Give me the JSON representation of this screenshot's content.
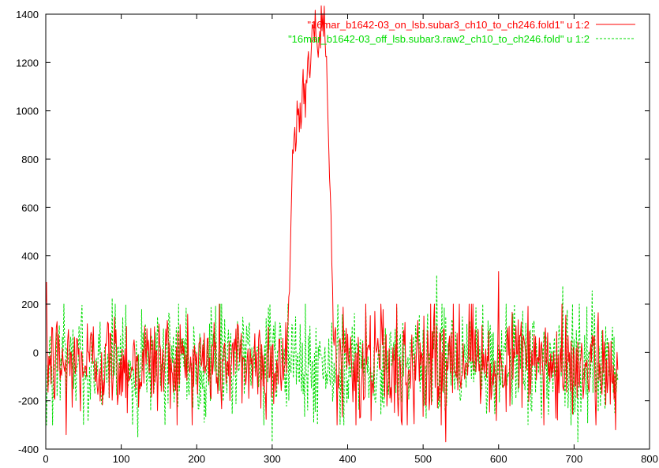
{
  "chart_data": {
    "type": "line",
    "xlim": [
      0,
      800
    ],
    "ylim": [
      -400,
      1400
    ],
    "x_ticks": [
      "0",
      "100",
      "200",
      "300",
      "400",
      "500",
      "600",
      "700",
      "800"
    ],
    "y_ticks": [
      "-400",
      "-200",
      "0",
      "200",
      "400",
      "600",
      "800",
      "1000",
      "1200",
      "1400"
    ],
    "grid": false,
    "legend_position": "top-right",
    "series": [
      {
        "name": "\"16mar_b1642-03_on_lsb.subar3_ch10_to_ch246.fold1\" u 1:2",
        "color": "#ff0000",
        "line_style": "solid",
        "x_range": [
          0,
          758
        ],
        "noise_sigma": 110,
        "spikes": [
          {
            "x": 1,
            "y": 290
          },
          {
            "x": 27,
            "y": -340
          },
          {
            "x": 530,
            "y": -370
          },
          {
            "x": 600,
            "y": 335
          },
          {
            "x": 755,
            "y": -320
          }
        ],
        "peak": {
          "points": [
            [
              318,
              20
            ],
            [
              323,
              350
            ],
            [
              326,
              650
            ],
            [
              330,
              900
            ],
            [
              336,
              1000
            ],
            [
              342,
              1050
            ],
            [
              348,
              1200
            ],
            [
              355,
              1330
            ],
            [
              360,
              1260
            ],
            [
              368,
              1380
            ],
            [
              372,
              1100
            ],
            [
              378,
              500
            ],
            [
              382,
              50
            ]
          ]
        }
      },
      {
        "name": "\"16mar_b1642-03_off_lsb.subar3.raw2_ch10_to_ch246.fold\" u 1:2",
        "color": "#00dd00",
        "line_style": "dashed",
        "x_range": [
          0,
          758
        ],
        "noise_sigma": 120,
        "spikes": [
          {
            "x": 88,
            "y": 225
          },
          {
            "x": 122,
            "y": -350
          },
          {
            "x": 300,
            "y": -370
          },
          {
            "x": 518,
            "y": 320
          },
          {
            "x": 685,
            "y": 275
          },
          {
            "x": 705,
            "y": -370
          },
          {
            "x": 724,
            "y": 255
          }
        ]
      }
    ]
  }
}
